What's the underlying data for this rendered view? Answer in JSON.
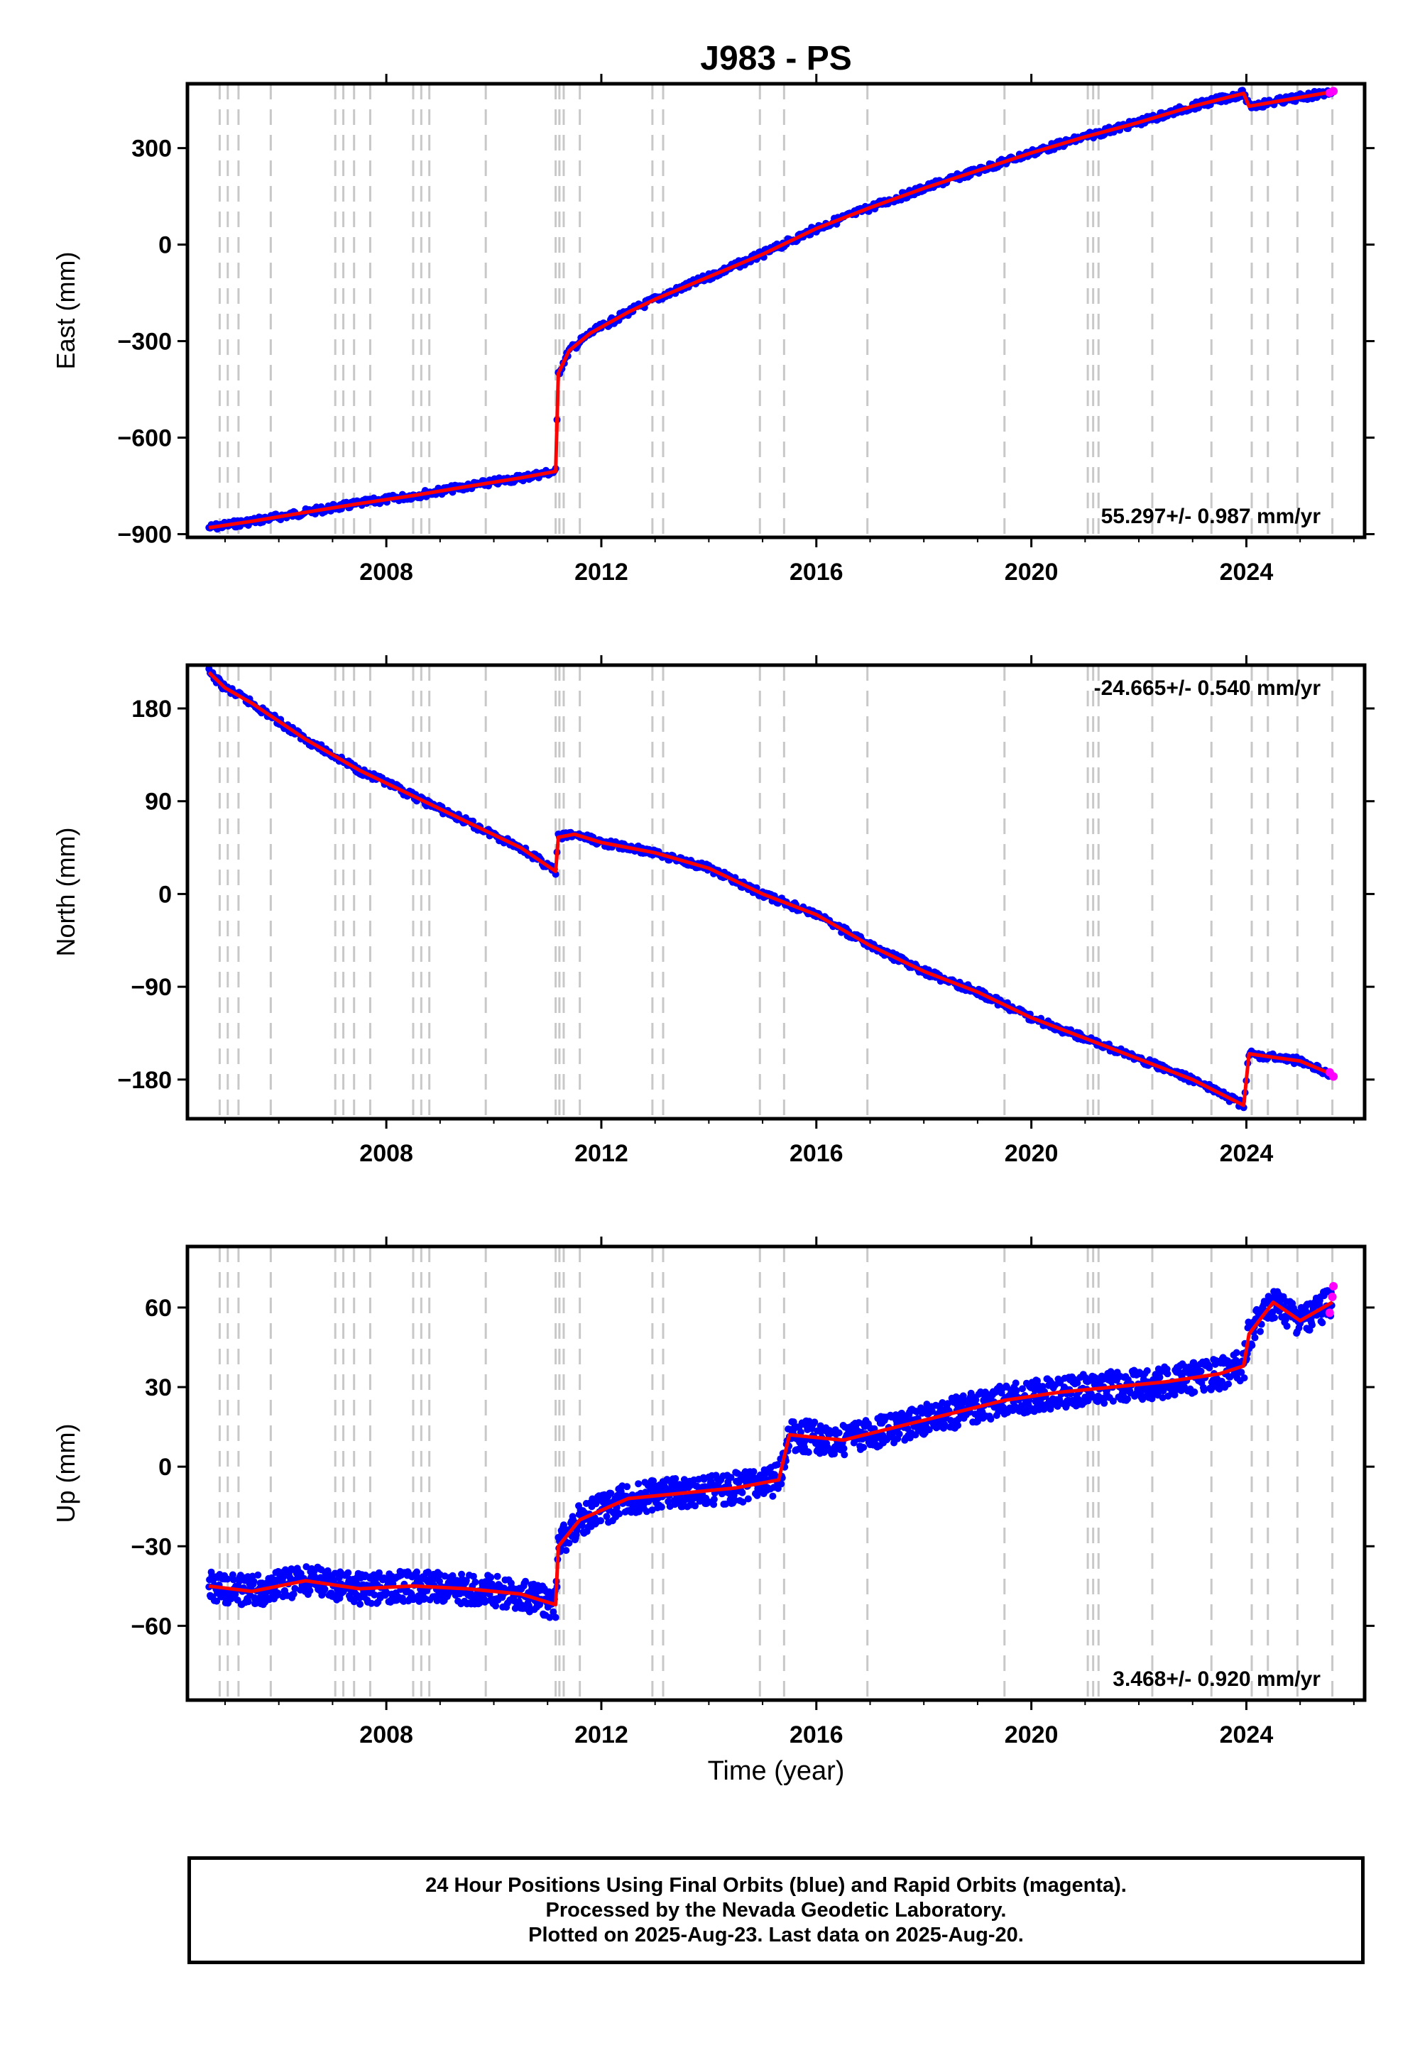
{
  "chart_data": [
    {
      "type": "line",
      "title": "J983 - PS",
      "ylabel": "East (mm)",
      "xlabel": "",
      "xlim": [
        2004.3,
        2026.2
      ],
      "ylim": [
        -910,
        500
      ],
      "xticks": [
        2008,
        2012,
        2016,
        2020,
        2024
      ],
      "yticks": [
        -900,
        -600,
        -300,
        0,
        300
      ],
      "rate_label": "55.297+/- 0.987 mm/yr",
      "rate_position": "bottom-right",
      "grid": false,
      "dashed_event_lines": true,
      "series": [
        {
          "color": "#0000ff",
          "x": [
            2004.7,
            2005.5,
            2006.5,
            2007.5,
            2008.5,
            2009.5,
            2010.5,
            2011.15,
            2011.2,
            2011.4,
            2011.8,
            2012.5,
            2013.0,
            2014.0,
            2015.0,
            2016.0,
            2017.0,
            2018.0,
            2019.0,
            2020.0,
            2021.0,
            2022.0,
            2023.0,
            2023.95,
            2024.05,
            2025.6
          ],
          "y": [
            -880,
            -860,
            -832,
            -805,
            -780,
            -752,
            -725,
            -705,
            -400,
            -330,
            -275,
            -210,
            -170,
            -100,
            -30,
            50,
            115,
            175,
            230,
            285,
            335,
            380,
            430,
            470,
            430,
            475
          ]
        },
        {
          "color": "#ff0000",
          "x": [
            2004.7,
            2005.5,
            2006.5,
            2007.5,
            2008.5,
            2009.5,
            2010.5,
            2011.15,
            2011.2,
            2011.4,
            2011.8,
            2012.5,
            2013.0,
            2014.0,
            2015.0,
            2016.0,
            2017.0,
            2018.0,
            2019.0,
            2020.0,
            2021.0,
            2022.0,
            2023.0,
            2023.95,
            2024.05,
            2025.6
          ],
          "y": [
            -880,
            -860,
            -832,
            -805,
            -780,
            -752,
            -725,
            -705,
            -400,
            -330,
            -275,
            -210,
            -170,
            -100,
            -30,
            50,
            115,
            175,
            230,
            285,
            335,
            380,
            430,
            470,
            430,
            475
          ]
        },
        {
          "color": "#ff00ff",
          "x": [
            2025.55,
            2025.62
          ],
          "y": [
            472,
            477
          ]
        }
      ]
    },
    {
      "type": "line",
      "title": "",
      "ylabel": "North (mm)",
      "xlabel": "",
      "xlim": [
        2004.3,
        2026.2
      ],
      "ylim": [
        -218,
        222
      ],
      "xticks": [
        2008,
        2012,
        2016,
        2020,
        2024
      ],
      "yticks": [
        -180,
        -90,
        0,
        90,
        180
      ],
      "rate_label": "-24.665+/- 0.540 mm/yr",
      "rate_position": "top-right",
      "grid": false,
      "dashed_event_lines": true,
      "series": [
        {
          "color": "#0000ff",
          "x": [
            2004.7,
            2005.0,
            2005.5,
            2006.5,
            2007.5,
            2008.5,
            2009.5,
            2010.5,
            2011.15,
            2011.2,
            2011.5,
            2012.0,
            2013.0,
            2014.0,
            2015.0,
            2016.0,
            2017.0,
            2018.0,
            2019.0,
            2020.0,
            2021.0,
            2022.0,
            2023.0,
            2023.95,
            2024.05,
            2025.0,
            2025.6
          ],
          "y": [
            215,
            200,
            185,
            150,
            120,
            95,
            70,
            45,
            22,
            55,
            58,
            50,
            40,
            25,
            0,
            -20,
            -50,
            -75,
            -95,
            -120,
            -140,
            -160,
            -180,
            -205,
            -155,
            -162,
            -175
          ]
        },
        {
          "color": "#ff0000",
          "x": [
            2004.7,
            2005.0,
            2005.5,
            2006.5,
            2007.5,
            2008.5,
            2009.5,
            2010.5,
            2011.15,
            2011.2,
            2011.5,
            2012.0,
            2013.0,
            2014.0,
            2015.0,
            2016.0,
            2017.0,
            2018.0,
            2019.0,
            2020.0,
            2021.0,
            2022.0,
            2023.0,
            2023.95,
            2024.05,
            2025.0,
            2025.6
          ],
          "y": [
            215,
            200,
            185,
            150,
            120,
            95,
            70,
            45,
            22,
            55,
            58,
            50,
            40,
            25,
            0,
            -20,
            -50,
            -75,
            -95,
            -120,
            -140,
            -160,
            -180,
            -205,
            -155,
            -162,
            -175
          ]
        },
        {
          "color": "#ff00ff",
          "x": [
            2025.55,
            2025.62
          ],
          "y": [
            -173,
            -177
          ]
        }
      ]
    },
    {
      "type": "scatter",
      "title": "",
      "ylabel": "Up (mm)",
      "xlabel": "Time (year)",
      "xlim": [
        2004.3,
        2026.2
      ],
      "ylim": [
        -88,
        83
      ],
      "xticks": [
        2008,
        2012,
        2016,
        2020,
        2024
      ],
      "yticks": [
        -60,
        -30,
        0,
        30,
        60
      ],
      "rate_label": "3.468+/- 0.920 mm/yr",
      "rate_position": "bottom-right",
      "grid": false,
      "dashed_event_lines": true,
      "series": [
        {
          "color": "#0000ff",
          "x": [
            2004.7,
            2005.5,
            2006.5,
            2007.5,
            2008.5,
            2009.5,
            2010.5,
            2011.15,
            2011.2,
            2011.6,
            2012.5,
            2013.5,
            2014.5,
            2015.3,
            2015.5,
            2016.5,
            2017.5,
            2018.5,
            2019.5,
            2020.5,
            2021.5,
            2022.5,
            2023.5,
            2023.95,
            2024.05,
            2024.5,
            2025.0,
            2025.6
          ],
          "y": [
            -45,
            -47,
            -43,
            -46,
            -45,
            -46,
            -48,
            -52,
            -30,
            -20,
            -12,
            -10,
            -8,
            -5,
            12,
            10,
            15,
            20,
            25,
            28,
            30,
            32,
            35,
            38,
            50,
            62,
            55,
            62
          ]
        },
        {
          "color": "#ff0000",
          "x": [
            2004.7,
            2005.5,
            2006.5,
            2007.5,
            2008.5,
            2009.5,
            2010.5,
            2011.15,
            2011.2,
            2011.6,
            2012.5,
            2013.5,
            2014.5,
            2015.3,
            2015.5,
            2016.5,
            2017.5,
            2018.5,
            2019.5,
            2020.5,
            2021.5,
            2022.5,
            2023.5,
            2023.95,
            2024.05,
            2024.5,
            2025.0,
            2025.6
          ],
          "y": [
            -45,
            -47,
            -43,
            -46,
            -45,
            -46,
            -48,
            -52,
            -30,
            -20,
            -12,
            -10,
            -8,
            -5,
            12,
            10,
            15,
            20,
            25,
            28,
            30,
            32,
            35,
            38,
            50,
            62,
            55,
            62
          ]
        },
        {
          "color": "#ff00ff",
          "x": [
            2025.55,
            2025.6,
            2025.62
          ],
          "y": [
            58,
            64,
            68
          ]
        }
      ]
    }
  ],
  "event_lines": [
    2004.9,
    2005.05,
    2005.25,
    2005.85,
    2007.05,
    2007.2,
    2007.4,
    2007.7,
    2008.5,
    2008.65,
    2008.8,
    2009.85,
    2011.15,
    2011.22,
    2011.3,
    2011.6,
    2012.95,
    2013.15,
    2014.95,
    2015.4,
    2016.95,
    2019.5,
    2021.05,
    2021.15,
    2021.25,
    2022.25,
    2023.35,
    2024.1,
    2024.4,
    2024.95,
    2025.6
  ],
  "colors": {
    "final_orbits": "#0000ff",
    "rapid_orbits": "#ff00ff",
    "model": "#ff0000",
    "event_line": "#c8c8c8"
  },
  "footer": {
    "line1": "24 Hour Positions Using Final Orbits (blue) and Rapid Orbits (magenta).",
    "line2": "Processed by the Nevada Geodetic Laboratory.",
    "line3": "Plotted on 2025-Aug-23. Last data on 2025-Aug-20."
  }
}
